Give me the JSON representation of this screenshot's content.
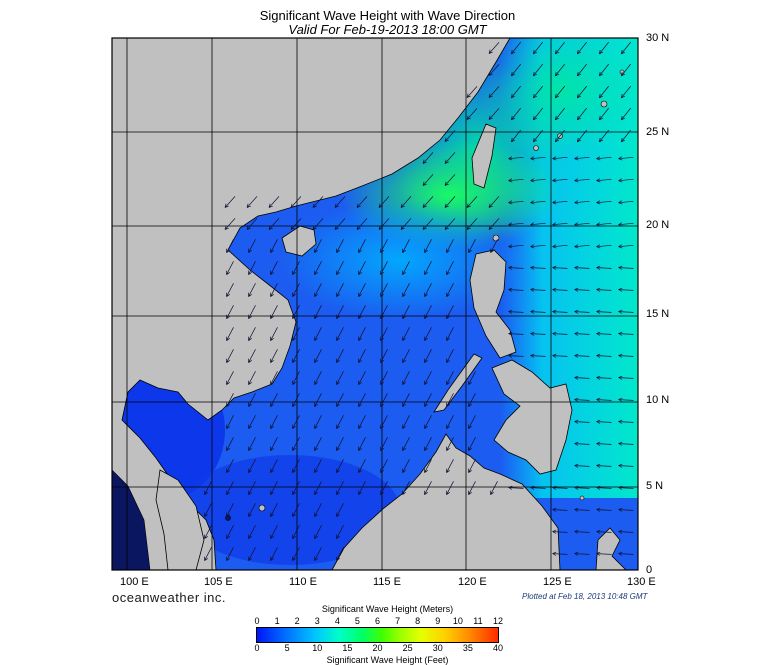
{
  "title": "Significant Wave Height with Wave Direction",
  "subtitle": "Valid For Feb-19-2013 18:00 GMT",
  "lon_labels": [
    "100 E",
    "105 E",
    "110 E",
    "115 E",
    "120 E",
    "125 E",
    "130 E"
  ],
  "lat_labels": [
    "30 N",
    "25 N",
    "20 N",
    "15 N",
    "10 N",
    "5 N",
    "0"
  ],
  "brand": "oceanweather inc.",
  "plotted": "Plotted at Feb 18, 2013 10:48 GMT",
  "scale": {
    "meters_title": "Significant Wave Height (Meters)",
    "feet_title": "Significant Wave Height (Feet)",
    "meters_ticks": [
      "0",
      "1",
      "2",
      "3",
      "4",
      "5",
      "6",
      "7",
      "8",
      "9",
      "10",
      "11",
      "12"
    ],
    "feet_ticks": [
      "0",
      "5",
      "10",
      "15",
      "20",
      "25",
      "30",
      "35",
      "40"
    ]
  },
  "colors": {
    "land": "#c0c0c0",
    "wave_low": "#0016f5",
    "wave_mid": "#00c4ff",
    "wave_high": "#00ff64",
    "wave_max": "#ff2a00"
  }
}
